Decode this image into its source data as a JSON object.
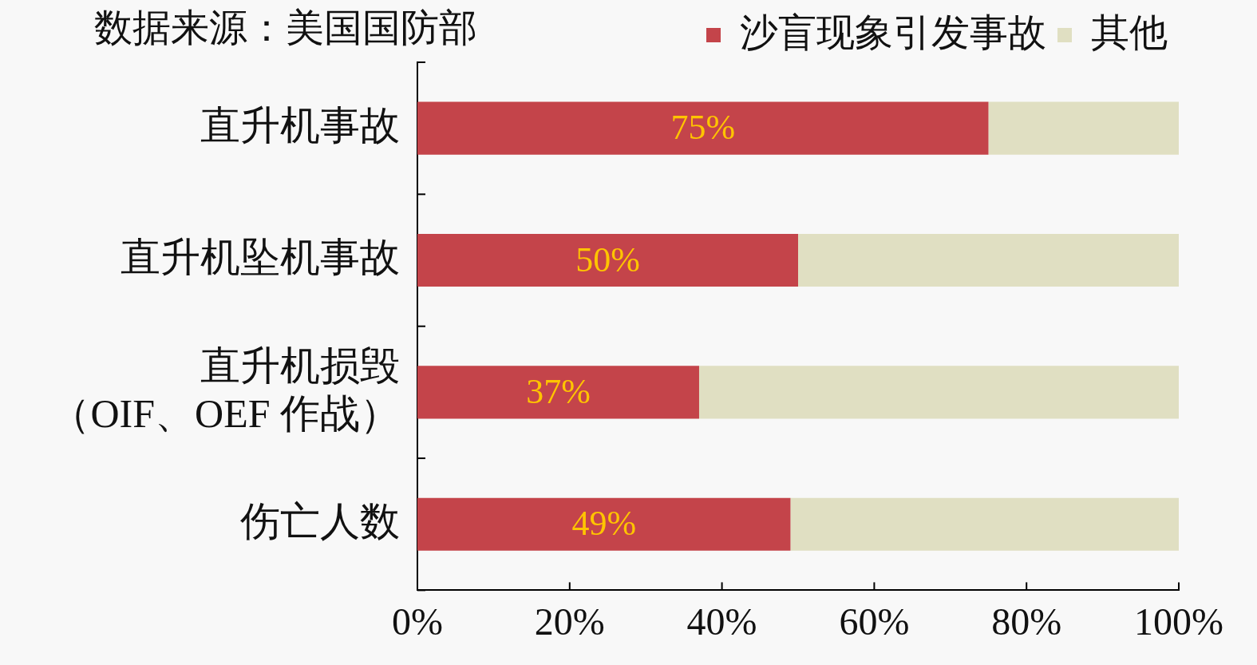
{
  "chart_data": {
    "type": "bar",
    "orientation": "horizontal",
    "stacked": true,
    "annotations": [
      "数据来源：美国国防部"
    ],
    "categories": [
      "直升机事故",
      "直升机坠机事故",
      "直升机损毁（OIF、OEF 作战）",
      "伤亡人数"
    ],
    "series": [
      {
        "name": "沙盲现象引发事故",
        "color": "#c4444a",
        "values": [
          75,
          50,
          37,
          49
        ],
        "value_labels": [
          "75%",
          "50%",
          "37%",
          "49%"
        ]
      },
      {
        "name": "其他",
        "color": "#e0dfc2",
        "values": [
          25,
          50,
          63,
          51
        ]
      }
    ],
    "xlim": [
      0,
      100
    ],
    "xticks": [
      {
        "value": 0,
        "label": "0%"
      },
      {
        "value": 20,
        "label": "20%"
      },
      {
        "value": 40,
        "label": "40%"
      },
      {
        "value": 60,
        "label": "60%"
      },
      {
        "value": 80,
        "label": "80%"
      },
      {
        "value": 100,
        "label": "100%"
      }
    ],
    "grid": false,
    "legend": "top right"
  }
}
